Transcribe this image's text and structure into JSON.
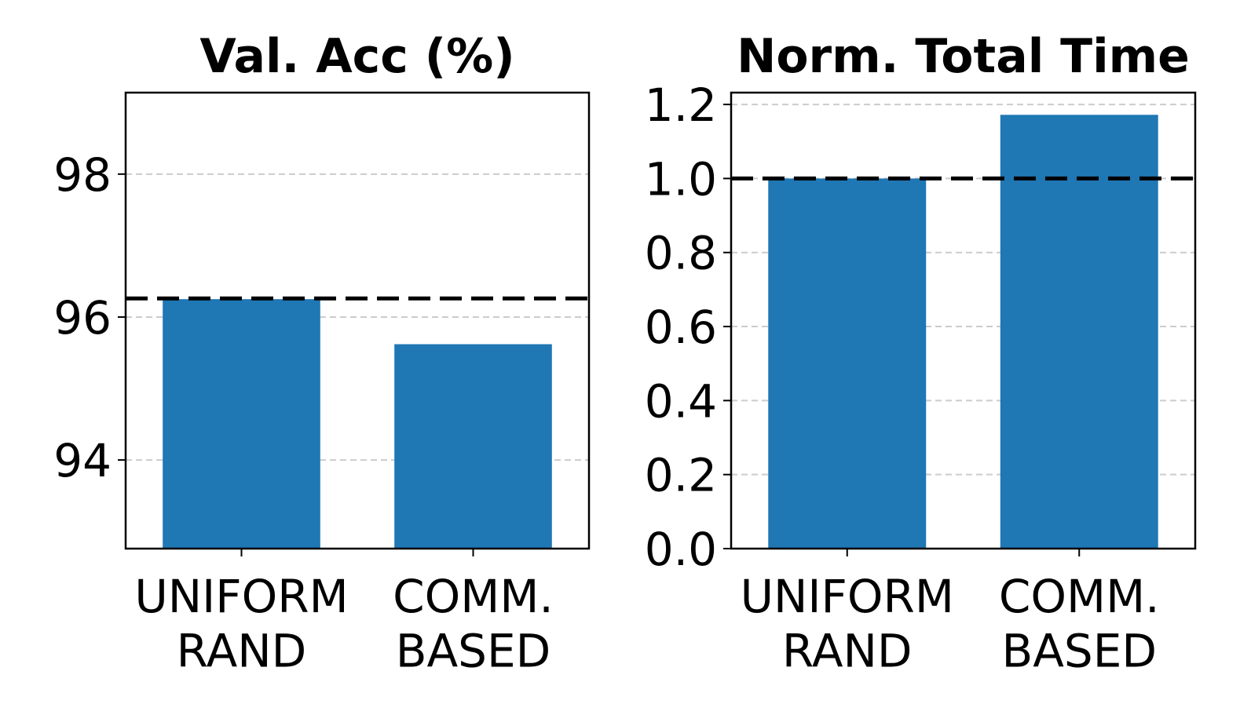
{
  "chart_data": [
    {
      "type": "bar",
      "title": "Val. Acc (%)",
      "categories": [
        "UNIFORM\nRAND",
        "COMM.\nBASED"
      ],
      "values": [
        96.25,
        95.62
      ],
      "color": "#1f77b4",
      "ylim": [
        92.76,
        99.14
      ],
      "yticks": [
        94,
        96,
        98
      ],
      "grid": true,
      "reference_line": 96.26
    },
    {
      "type": "bar",
      "title": "Norm. Total Time",
      "categories": [
        "UNIFORM\nRAND",
        "COMM.\nBASED"
      ],
      "values": [
        1.0,
        1.172
      ],
      "color": "#1f77b4",
      "ylim": [
        0,
        1.232
      ],
      "yticks": [
        {
          "value": 0,
          "label": "0.0"
        },
        0.2,
        0.4,
        0.6,
        0.8,
        {
          "value": 1,
          "label": "1.0"
        },
        1.2
      ],
      "grid": true,
      "reference_line": 1.0
    }
  ]
}
